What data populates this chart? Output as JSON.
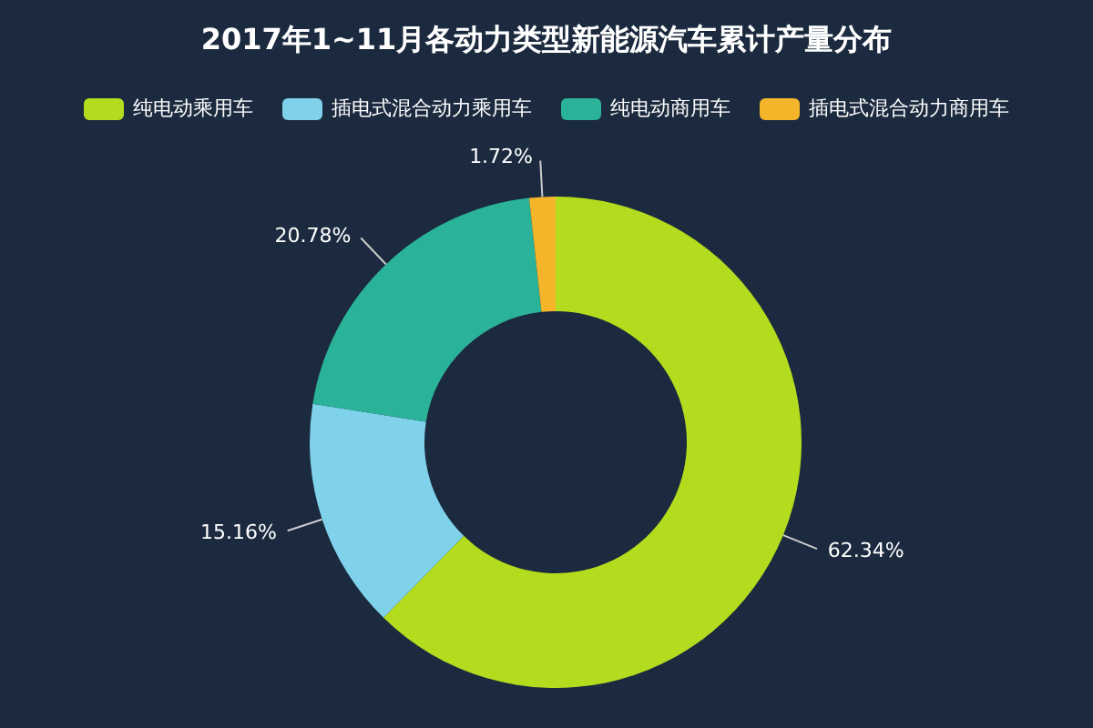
{
  "chart_data": {
    "type": "donut",
    "title": "2017年1~11月各动力类型新能源汽车累计产量分布",
    "categories": [
      "纯电动乘用车",
      "插电式混合动力乘用车",
      "纯电动商用车",
      "插电式混合动力商用车"
    ],
    "values": [
      62.34,
      15.16,
      20.78,
      1.72
    ],
    "colors": [
      "#b4dc1e",
      "#7fd2ea",
      "#2bb39a",
      "#f4b52b"
    ],
    "value_labels": [
      "62.34%",
      "15.16%",
      "20.78%",
      "1.72%"
    ],
    "legend": "top"
  }
}
